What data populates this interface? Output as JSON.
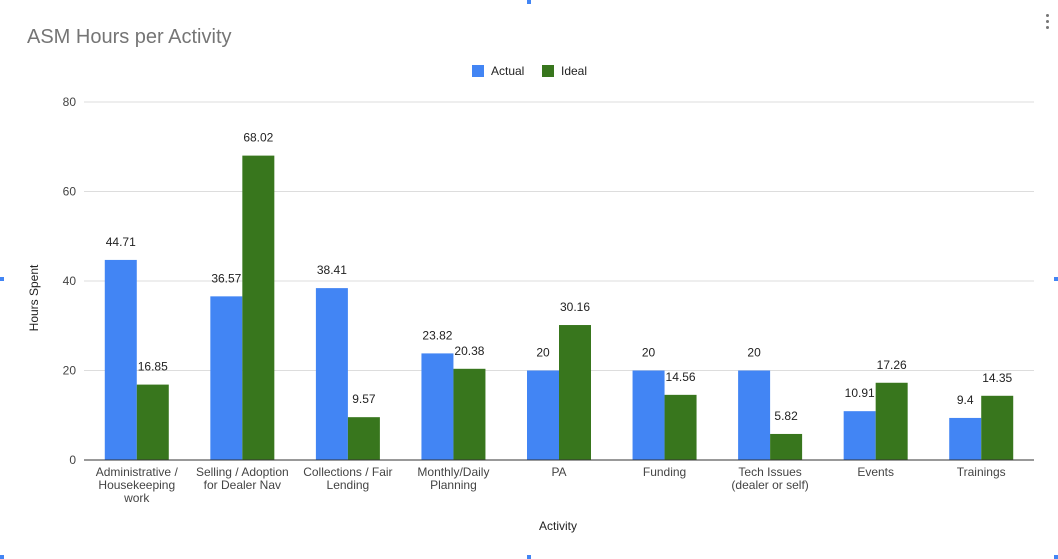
{
  "colors": {
    "actual": "#4285f4",
    "ideal": "#38761d",
    "grid": "#dddddd",
    "axis": "#333333"
  },
  "chart_data": {
    "type": "bar",
    "title": "ASM Hours per Activity",
    "xlabel": "Activity",
    "ylabel": "Hours Spent",
    "ylim": [
      0,
      80
    ],
    "yticks": [
      0,
      20,
      40,
      60,
      80
    ],
    "grid": true,
    "legend_position": "top",
    "categories": [
      [
        "Administrative /",
        "Housekeeping",
        "work"
      ],
      [
        "Selling / Adoption",
        "for Dealer Nav"
      ],
      [
        "Collections / Fair",
        "Lending"
      ],
      [
        "Monthly/Daily",
        "Planning"
      ],
      [
        "PA"
      ],
      [
        "Funding"
      ],
      [
        "Tech Issues",
        "(dealer or self)"
      ],
      [
        "Events"
      ],
      [
        "Trainings"
      ]
    ],
    "series": [
      {
        "name": "Actual",
        "values": [
          44.71,
          36.57,
          38.41,
          23.82,
          20,
          20,
          20,
          10.91,
          9.4
        ]
      },
      {
        "name": "Ideal",
        "values": [
          16.85,
          68.02,
          9.57,
          20.38,
          30.16,
          14.56,
          5.82,
          17.26,
          14.35
        ]
      }
    ]
  }
}
